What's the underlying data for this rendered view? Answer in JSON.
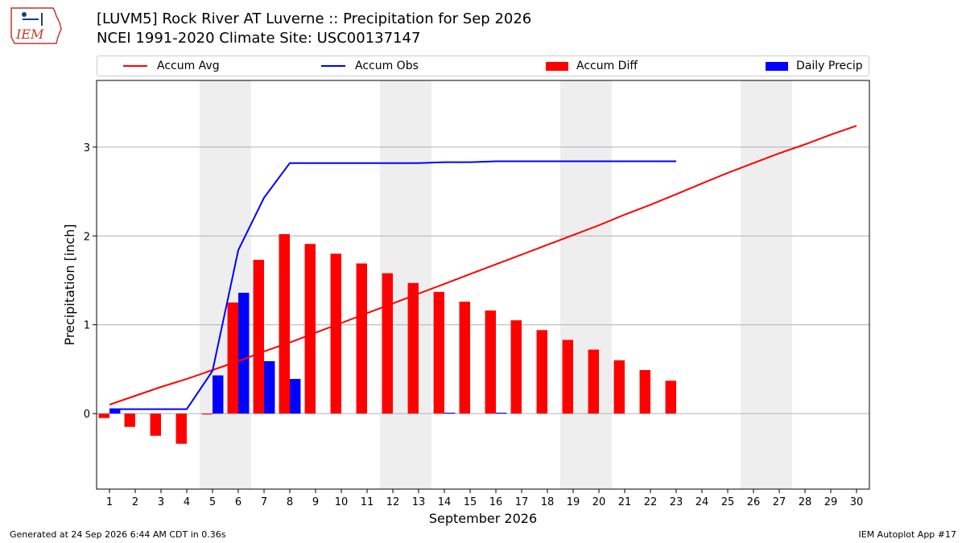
{
  "header": {
    "logo_text": "IEM",
    "title_line1": "[LUVM5] Rock River  AT Luverne :: Precipitation for Sep 2026",
    "title_line2": "NCEI 1991-2020 Climate Site: USC00137147"
  },
  "legend": {
    "items": [
      {
        "label": "Accum Avg",
        "kind": "line",
        "color": "#ff0000"
      },
      {
        "label": "Accum Obs",
        "kind": "line",
        "color": "#0000ff"
      },
      {
        "label": "Accum Diff",
        "kind": "bar",
        "color": "#ff0000"
      },
      {
        "label": "Daily Precip",
        "kind": "bar",
        "color": "#0000ff"
      }
    ]
  },
  "footer": {
    "left": "Generated at 24 Sep 2026 6:44 AM CDT in 0.36s",
    "right": "IEM Autoplot App #17"
  },
  "chart_data": {
    "type": "bar",
    "xlabel": "September 2026",
    "ylabel": "Precipitation [inch]",
    "xlim": [
      0.5,
      30.5
    ],
    "ylim": [
      -0.85,
      3.75
    ],
    "yticks": [
      0,
      1,
      2,
      3
    ],
    "grid": "y",
    "legend_position": "top",
    "weekend_shading": [
      [
        5,
        6
      ],
      [
        12,
        13
      ],
      [
        19,
        20
      ],
      [
        26,
        27
      ]
    ],
    "x": [
      1,
      2,
      3,
      4,
      5,
      6,
      7,
      8,
      9,
      10,
      11,
      12,
      13,
      14,
      15,
      16,
      17,
      18,
      19,
      20,
      21,
      22,
      23,
      24,
      25,
      26,
      27,
      28,
      29,
      30
    ],
    "series": [
      {
        "name": "Accum Avg",
        "kind": "line",
        "color": "#ff0000",
        "values": [
          0.1,
          0.2,
          0.3,
          0.39,
          0.49,
          0.59,
          0.7,
          0.8,
          0.91,
          1.02,
          1.13,
          1.24,
          1.35,
          1.46,
          1.57,
          1.68,
          1.79,
          1.9,
          2.01,
          2.12,
          2.24,
          2.35,
          2.47,
          2.59,
          2.71,
          2.82,
          2.93,
          3.03,
          3.14,
          3.24
        ]
      },
      {
        "name": "Accum Obs",
        "kind": "line",
        "color": "#0000ff",
        "values": [
          0.05,
          0.05,
          0.05,
          0.05,
          0.48,
          1.84,
          2.43,
          2.82,
          2.82,
          2.82,
          2.82,
          2.82,
          2.82,
          2.83,
          2.83,
          2.84,
          2.84,
          2.84,
          2.84,
          2.84,
          2.84,
          2.84,
          2.84,
          null,
          null,
          null,
          null,
          null,
          null,
          null
        ]
      },
      {
        "name": "Accum Diff",
        "kind": "bar",
        "color": "#ff0000",
        "values": [
          -0.05,
          -0.15,
          -0.25,
          -0.34,
          -0.01,
          1.25,
          1.73,
          2.02,
          1.91,
          1.8,
          1.69,
          1.58,
          1.47,
          1.37,
          1.26,
          1.16,
          1.05,
          0.94,
          0.83,
          0.72,
          0.6,
          0.49,
          0.37,
          null,
          null,
          null,
          null,
          null,
          null,
          null
        ]
      },
      {
        "name": "Daily Precip",
        "kind": "bar",
        "color": "#0000ff",
        "values": [
          0.05,
          0,
          0,
          0,
          0.43,
          1.36,
          0.59,
          0.39,
          0,
          0,
          0,
          0,
          0,
          0.01,
          0,
          0.01,
          0,
          0,
          0,
          0,
          0,
          0,
          0,
          null,
          null,
          null,
          null,
          null,
          null,
          null
        ]
      }
    ]
  }
}
